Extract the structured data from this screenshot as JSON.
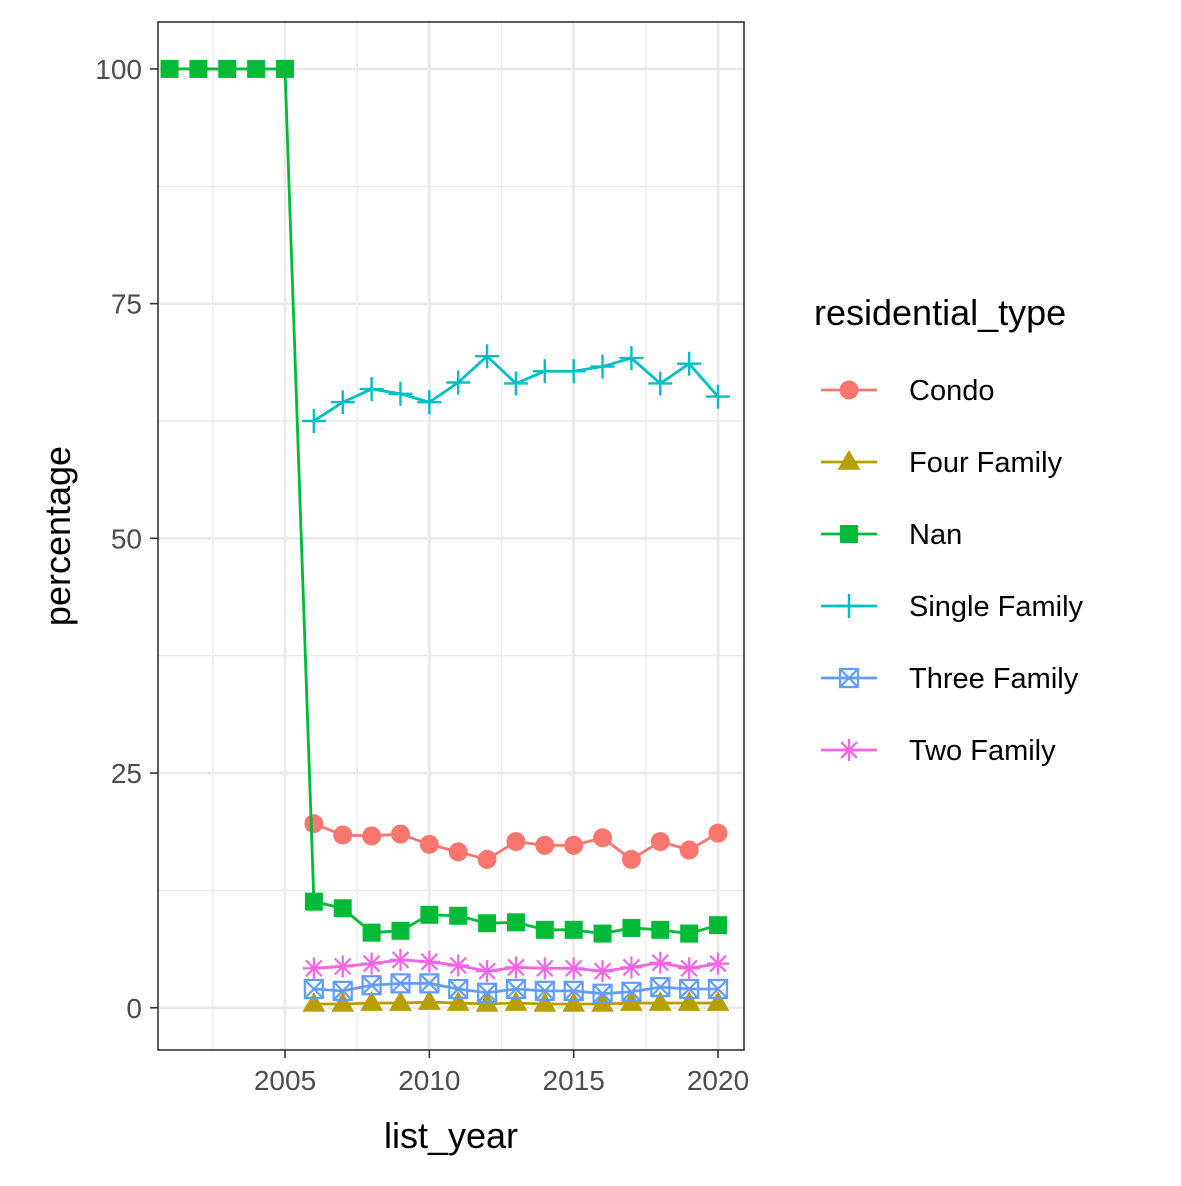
{
  "chart_data": {
    "type": "line",
    "xlabel": "list_year",
    "ylabel": "percentage",
    "xlim": [
      2000.6,
      2020.9
    ],
    "ylim": [
      -4.5,
      105
    ],
    "x_ticks": [
      2005,
      2010,
      2015,
      2020
    ],
    "y_ticks": [
      0,
      25,
      50,
      75,
      100
    ],
    "grid": true,
    "legend": {
      "title": "residential_type",
      "position": "right"
    },
    "series": [
      {
        "name": "Condo",
        "color": "#F8766D",
        "marker": "circle",
        "x": [
          2006,
          2007,
          2008,
          2009,
          2010,
          2011,
          2012,
          2013,
          2014,
          2015,
          2016,
          2017,
          2018,
          2019,
          2020
        ],
        "values": [
          19.6,
          18.4,
          18.3,
          18.5,
          17.4,
          16.6,
          15.8,
          17.7,
          17.3,
          17.3,
          18.1,
          15.8,
          17.7,
          16.8,
          18.6
        ]
      },
      {
        "name": "Four Family",
        "color": "#B79F00",
        "marker": "triangle",
        "x": [
          2006,
          2007,
          2008,
          2009,
          2010,
          2011,
          2012,
          2013,
          2014,
          2015,
          2016,
          2017,
          2018,
          2019,
          2020
        ],
        "values": [
          0.4,
          0.4,
          0.5,
          0.5,
          0.6,
          0.5,
          0.4,
          0.5,
          0.4,
          0.4,
          0.4,
          0.5,
          0.5,
          0.5,
          0.5
        ]
      },
      {
        "name": "Nan",
        "color": "#00BA38",
        "marker": "square",
        "x": [
          2001,
          2002,
          2003,
          2004,
          2005,
          2006,
          2007,
          2008,
          2009,
          2010,
          2011,
          2012,
          2013,
          2014,
          2015,
          2016,
          2017,
          2018,
          2019,
          2020
        ],
        "values": [
          100,
          100,
          100,
          100,
          100,
          11.3,
          10.6,
          8.0,
          8.2,
          9.9,
          9.8,
          9.0,
          9.1,
          8.3,
          8.3,
          7.9,
          8.5,
          8.3,
          7.9,
          8.8
        ]
      },
      {
        "name": "Single Family",
        "color": "#00BFC4",
        "marker": "plus",
        "x": [
          2006,
          2007,
          2008,
          2009,
          2010,
          2011,
          2012,
          2013,
          2014,
          2015,
          2016,
          2017,
          2018,
          2019,
          2020
        ],
        "values": [
          62.5,
          64.5,
          65.9,
          65.4,
          64.5,
          66.6,
          69.4,
          66.5,
          67.8,
          67.8,
          68.3,
          69.2,
          66.5,
          68.6,
          65.1
        ]
      },
      {
        "name": "Three Family",
        "color": "#619CFF",
        "marker": "square-cross",
        "x": [
          2006,
          2007,
          2008,
          2009,
          2010,
          2011,
          2012,
          2013,
          2014,
          2015,
          2016,
          2017,
          2018,
          2019,
          2020
        ],
        "values": [
          2.0,
          1.8,
          2.4,
          2.6,
          2.6,
          2.0,
          1.6,
          2.0,
          1.8,
          1.8,
          1.5,
          1.7,
          2.2,
          2.0,
          2.0
        ]
      },
      {
        "name": "Two Family",
        "color": "#F564E3",
        "marker": "asterisk",
        "x": [
          2006,
          2007,
          2008,
          2009,
          2010,
          2011,
          2012,
          2013,
          2014,
          2015,
          2016,
          2017,
          2018,
          2019,
          2020
        ],
        "values": [
          4.2,
          4.4,
          4.7,
          5.1,
          4.9,
          4.5,
          3.9,
          4.3,
          4.2,
          4.2,
          3.9,
          4.3,
          4.8,
          4.2,
          4.7
        ]
      }
    ]
  }
}
